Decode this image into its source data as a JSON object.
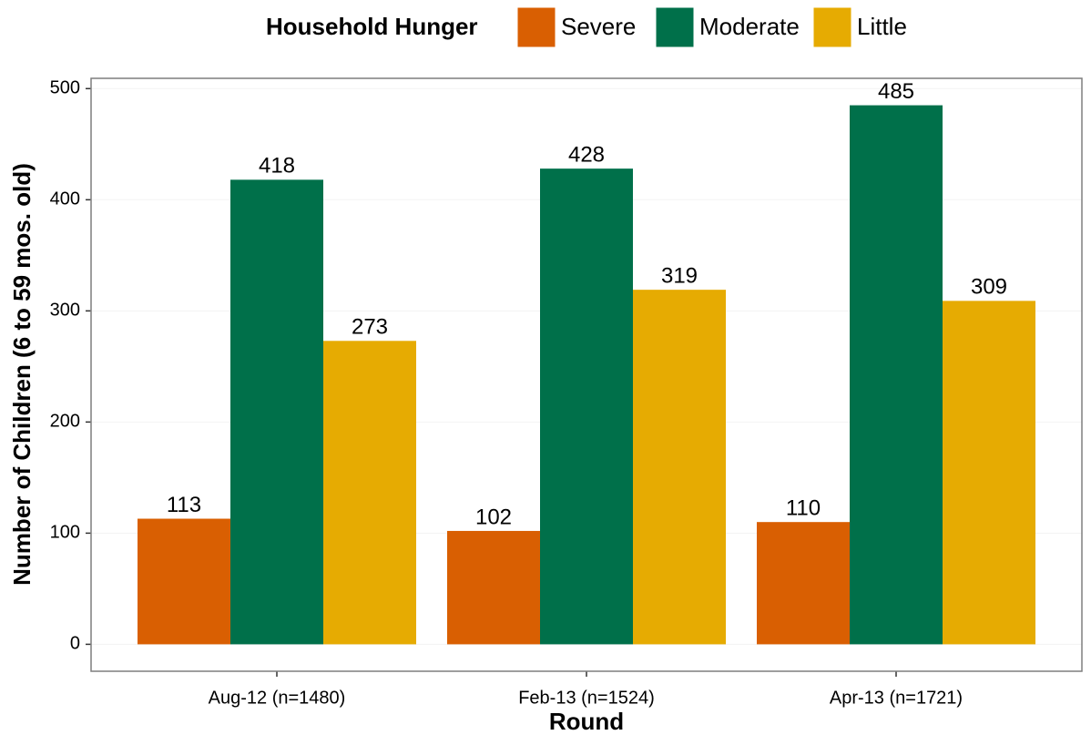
{
  "chart_data": {
    "type": "bar",
    "legend_title": "Household Hunger",
    "x_label": "Round",
    "y_label": "Number of Children (6 to 59 mos. old)",
    "categories": [
      "Aug-12 (n=1480)",
      "Feb-13 (n=1524)",
      "Apr-13 (n=1721)"
    ],
    "series": [
      {
        "name": "Severe",
        "color": "#d95f02",
        "values": [
          113,
          102,
          110
        ]
      },
      {
        "name": "Moderate",
        "color": "#00704a",
        "values": [
          418,
          428,
          485
        ]
      },
      {
        "name": "Little",
        "color": "#e6ab02",
        "values": [
          273,
          319,
          309
        ]
      }
    ],
    "ylim": [
      -24.25,
      509.25
    ],
    "yticks": [
      0,
      100,
      200,
      300,
      400,
      500
    ],
    "grid": true,
    "legend_position": "top"
  }
}
